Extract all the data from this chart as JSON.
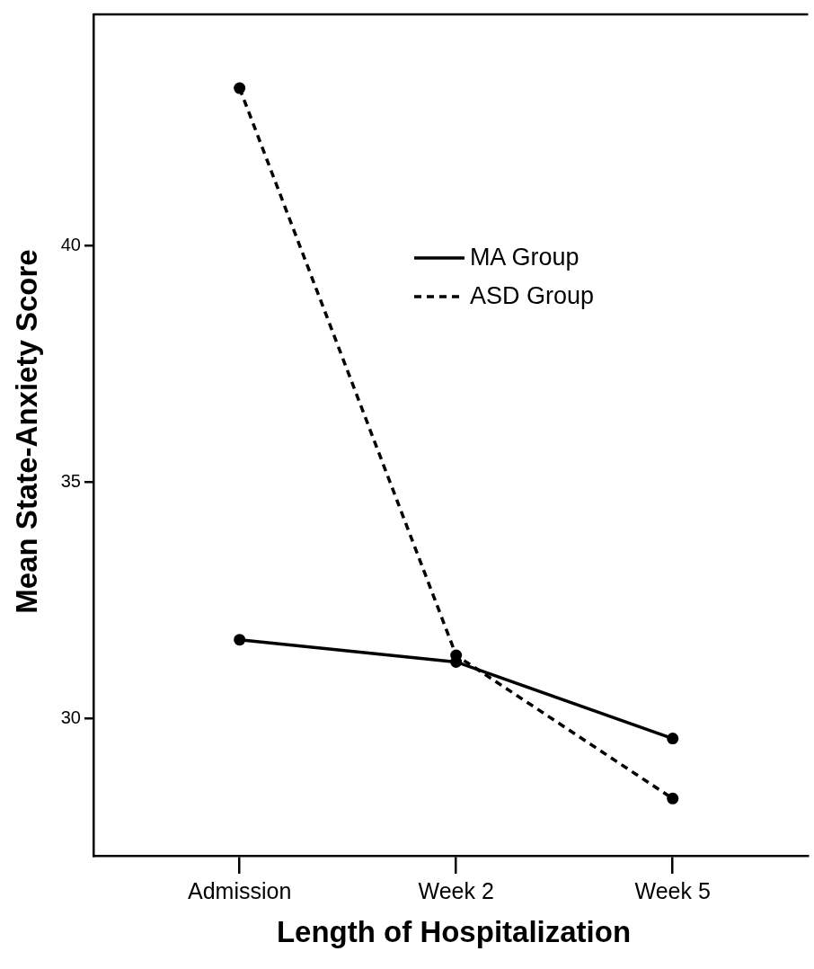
{
  "chart_data": {
    "type": "line",
    "xlabel": "Length of Hospitalization",
    "ylabel": "Mean State-Anxiety Score",
    "categories": [
      "Admission",
      "Week 2",
      "Week 5"
    ],
    "series": [
      {
        "name": "MA Group",
        "color": "#000000",
        "line_style": "solid",
        "values": [
          31.67,
          31.2,
          29.58
        ]
      },
      {
        "name": "ASD Group",
        "color": "#000000",
        "line_style": "dashed",
        "values": [
          43.34,
          31.34,
          28.31
        ]
      }
    ],
    "ylim": [
      27.1,
      44.9
    ],
    "yticks": [
      30,
      35,
      40
    ],
    "grid": false,
    "legend": "top right",
    "marker": "circle"
  }
}
